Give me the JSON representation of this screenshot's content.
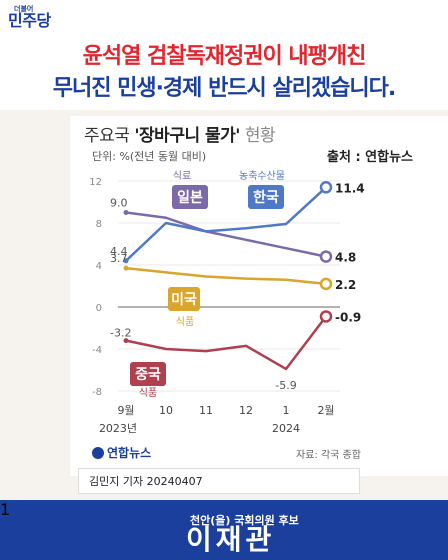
{
  "logo": {
    "small": "더불어",
    "big": "민주당"
  },
  "headline": {
    "line1": "윤석열 검찰독재정권이 내팽개친",
    "line2": "무너진 민생·경제 반드시 살리겠습니다."
  },
  "chart_header": {
    "title_prefix": "주요국 ",
    "title_main": "'장바구니 물가'",
    "title_suffix": " 현황",
    "unit": "단위: %(전년 동월 대비)",
    "source": "출처 : 연합뉴스"
  },
  "chart_data": {
    "type": "line",
    "x": [
      "9월",
      "10",
      "11",
      "12",
      "1",
      "2월"
    ],
    "year_labels": [
      "2023년",
      "2024"
    ],
    "yticks": [
      12,
      8,
      4,
      0,
      -4,
      -8
    ],
    "ylim": [
      -8,
      12
    ],
    "series": [
      {
        "name": "일본",
        "sub_label": "식료",
        "color": "#7b6aa8",
        "values": [
          9.0,
          8.5,
          7.2,
          6.4,
          5.6,
          4.8
        ],
        "first_label": "9.0",
        "last_label": "4.8"
      },
      {
        "name": "한국",
        "sub_label": "농축수산물",
        "color": "#4f79c6",
        "values": [
          4.4,
          8.0,
          7.2,
          7.5,
          7.9,
          11.4
        ],
        "first_label": "4.4",
        "last_label": "11.4"
      },
      {
        "name": "미국",
        "sub_label": "식품",
        "color": "#d9a52a",
        "values": [
          3.7,
          3.3,
          2.9,
          2.7,
          2.6,
          2.2
        ],
        "first_label": "3.7",
        "last_label": "2.2"
      },
      {
        "name": "중국",
        "sub_label": "식품",
        "color": "#b0404f",
        "values": [
          -3.2,
          -4.0,
          -4.2,
          -3.7,
          -5.9,
          -0.9
        ],
        "first_label": "-3.2",
        "last_label": "-0.9",
        "extra_label": "-5.9"
      }
    ]
  },
  "footer_left": {
    "yonhap": "연합뉴스",
    "note": "자료: 각국 종합"
  },
  "byline": "김민지 기자  20240407",
  "footer": {
    "number": "1",
    "sub": "천안(을) 국회의원 후보",
    "name": "이재관"
  }
}
